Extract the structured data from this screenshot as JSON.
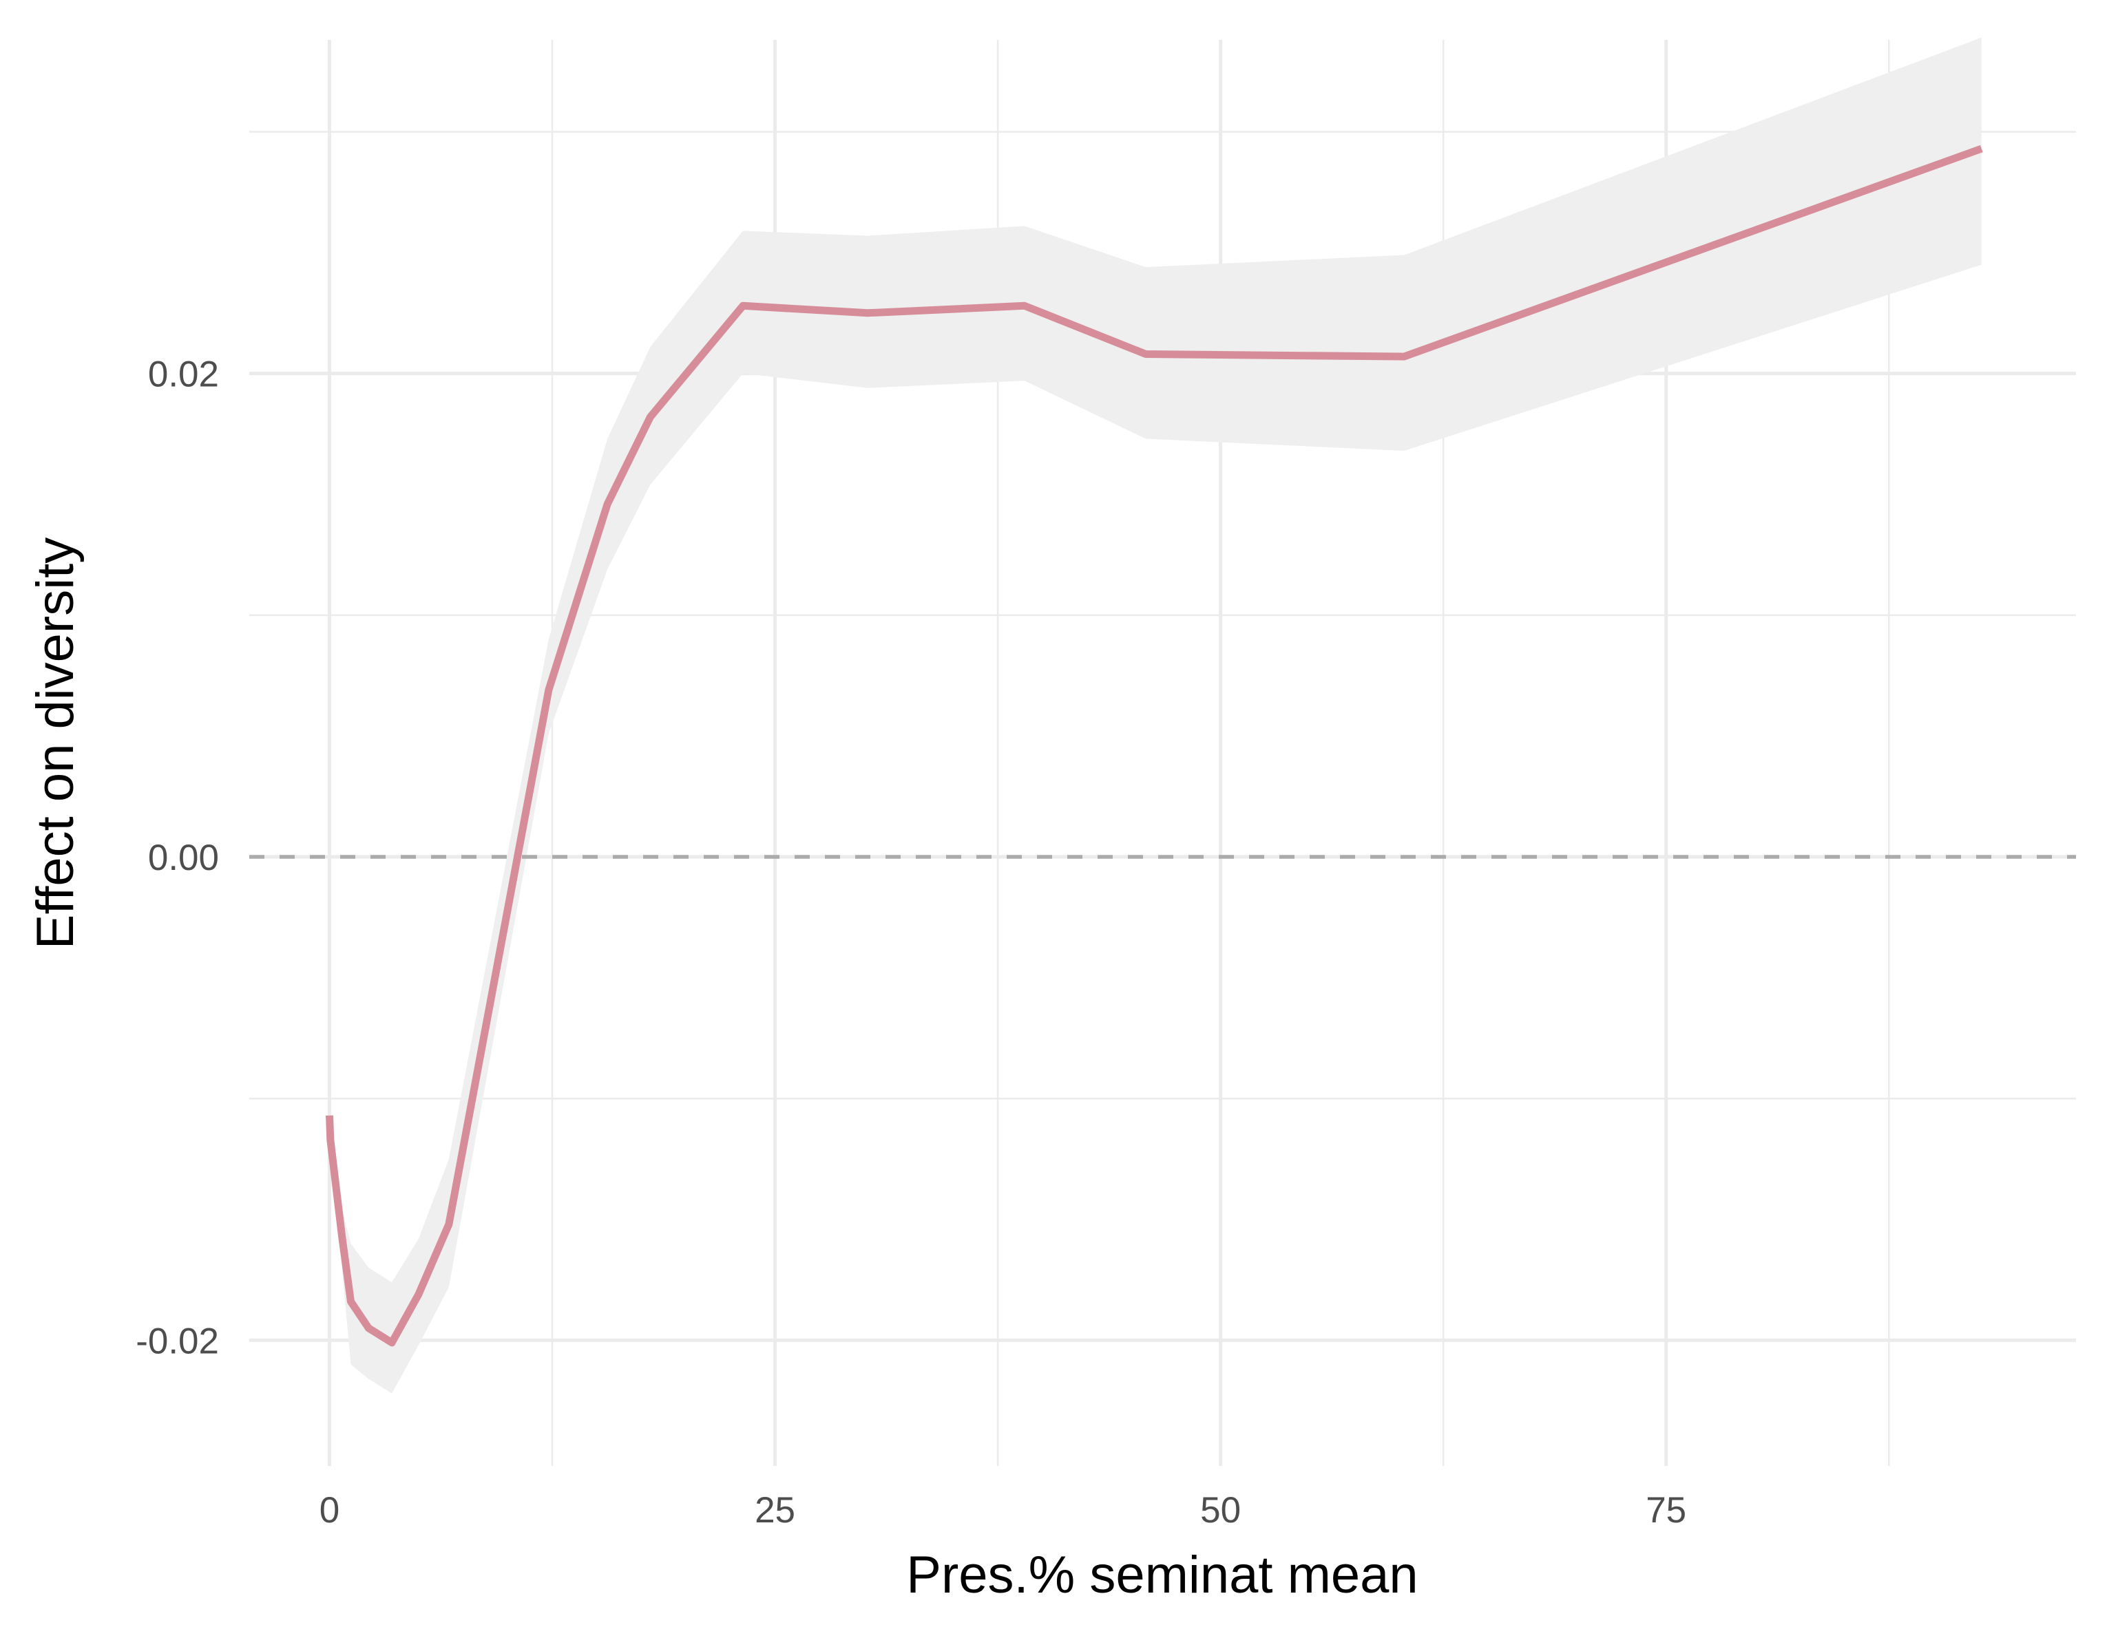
{
  "chart_data": {
    "type": "line",
    "title": "",
    "xlabel": "Pres.% seminat mean",
    "ylabel": "Effect on diversity",
    "xlim": [
      -4.5,
      98
    ],
    "ylim": [
      -0.0252,
      0.0338
    ],
    "x_ticks": [
      0,
      25,
      50,
      75
    ],
    "x_tick_labels": [
      "0",
      "25",
      "50",
      "75"
    ],
    "x_minor_ticks": [
      12.5,
      37.5,
      62.5,
      87.5
    ],
    "y_ticks": [
      -0.02,
      0.0,
      0.02
    ],
    "y_tick_labels": [
      "-0.02",
      "0.00",
      "0.02"
    ],
    "y_minor_ticks": [
      -0.01,
      0.01,
      0.03
    ],
    "grid": true,
    "reference_line": {
      "y": 0.0,
      "style": "dashed",
      "color": "#ababab"
    },
    "colors": {
      "line": "#d68d99",
      "band": "#efefef",
      "grid": "#ebebeb"
    },
    "series": [
      {
        "x": [
          0.0,
          0.05,
          0.7,
          1.2,
          2.2,
          3.5,
          5.0,
          6.7,
          12.3,
          15.6,
          18.0,
          23.2,
          30.2,
          39.0,
          45.8,
          60.3,
          92.7
        ],
        "y": [
          -0.0107,
          -0.0117,
          -0.0157,
          -0.0184,
          -0.0195,
          -0.0201,
          -0.0181,
          -0.0152,
          0.0069,
          0.0146,
          0.0182,
          0.0228,
          0.0225,
          0.0228,
          0.0208,
          0.0207,
          0.0293
        ],
        "lower": [
          -0.0107,
          -0.0125,
          -0.017,
          -0.021,
          -0.0216,
          -0.0222,
          -0.0202,
          -0.0178,
          0.0051,
          0.0119,
          0.0154,
          0.02,
          0.0194,
          0.0197,
          0.0173,
          0.0168,
          0.0245
        ],
        "upper": [
          -0.0107,
          -0.011,
          -0.0146,
          -0.016,
          -0.017,
          -0.0176,
          -0.0158,
          -0.0125,
          0.009,
          0.0173,
          0.0211,
          0.0259,
          0.0257,
          0.0261,
          0.0244,
          0.0249,
          0.0339
        ]
      }
    ]
  }
}
